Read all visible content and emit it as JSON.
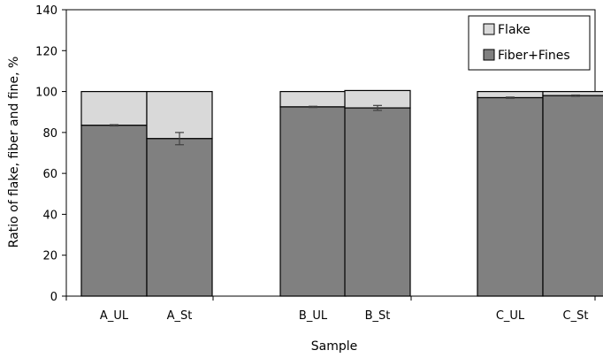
{
  "chart_data": {
    "type": "bar",
    "stacked": true,
    "categories": [
      "A_UL",
      "A_St",
      "B_UL",
      "B_St",
      "C_UL",
      "C_St"
    ],
    "groups": [
      [
        "A_UL",
        "A_St"
      ],
      [
        "B_UL",
        "B_St"
      ],
      [
        "C_UL",
        "C_St"
      ]
    ],
    "series": [
      {
        "name": "Fiber+Fines",
        "values": [
          83.5,
          77.0,
          92.5,
          92.0,
          97.0,
          98.0
        ],
        "error": [
          0.3,
          3.0,
          0.3,
          1.2,
          0.3,
          0.3
        ],
        "color": "#808080"
      },
      {
        "name": "Flake",
        "values": [
          16.5,
          23.0,
          7.5,
          8.5,
          3.0,
          2.0
        ],
        "color": "#d9d9d9"
      }
    ],
    "xlabel": "Sample",
    "ylabel": "Ratio of flake, fiber and fine, %",
    "ylim": [
      0,
      140
    ],
    "yticks": [
      0,
      20,
      40,
      60,
      80,
      100,
      120,
      140
    ],
    "grid": false,
    "legend_position": "top-right",
    "legend_order": [
      "Flake",
      "Fiber+Fines"
    ]
  }
}
